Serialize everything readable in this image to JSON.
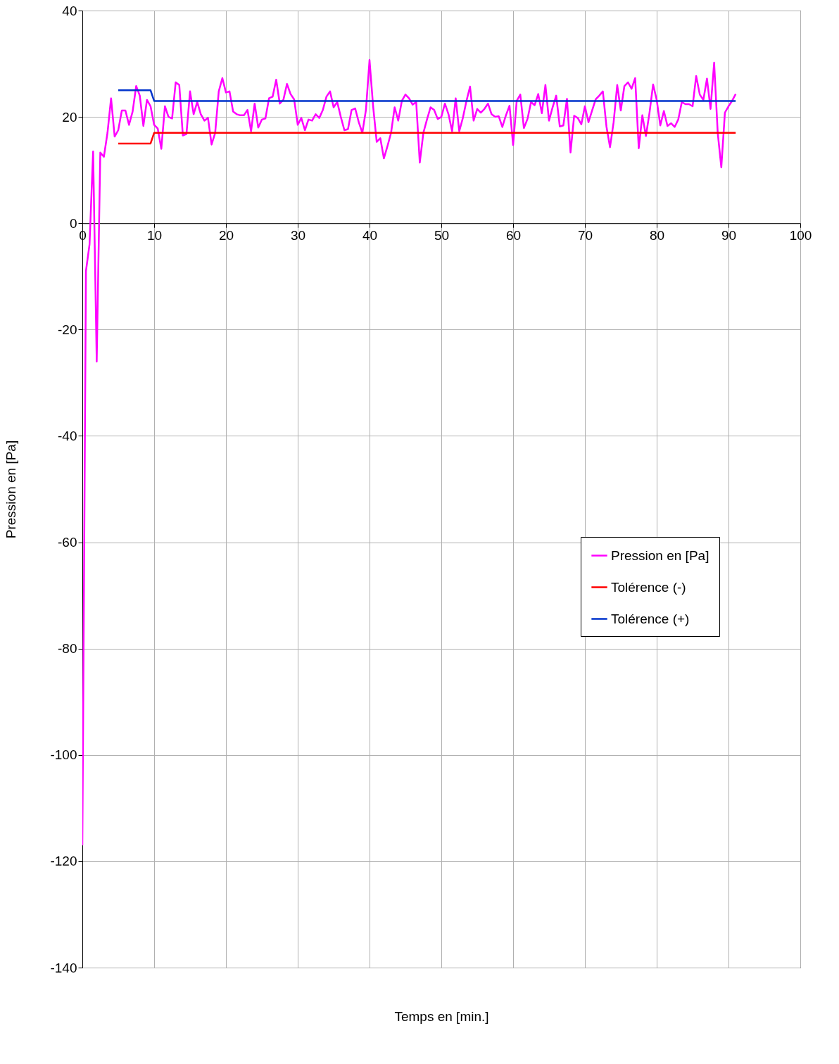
{
  "chart_data": {
    "type": "line",
    "xlabel": "Temps en [min.]",
    "ylabel": "Pression en [Pa]",
    "xlim": [
      0,
      100
    ],
    "xticks": [
      0,
      10,
      20,
      30,
      40,
      50,
      60,
      70,
      80,
      90,
      100
    ],
    "ylim": [
      -140,
      40
    ],
    "yticks": [
      -140,
      -120,
      -100,
      -80,
      -60,
      -40,
      -20,
      0,
      20,
      40
    ],
    "grid": true,
    "legend": "right",
    "marker": "none",
    "line_style": "solid",
    "series": [
      {
        "name": "Pression en [Pa]",
        "color": "#ff00ff",
        "x": [
          0,
          0.5,
          1,
          1.5,
          2,
          2.5,
          3,
          3.5,
          4,
          4.5,
          5,
          5.5,
          6,
          6.5,
          7,
          7.5,
          8,
          8.5,
          9,
          9.5,
          10,
          10.5,
          11,
          11.5,
          12,
          12.5,
          13,
          13.5,
          14,
          14.5,
          15,
          15.5,
          16,
          16.5,
          17,
          17.5,
          18,
          18.5,
          19,
          19.5,
          20,
          20.5,
          21,
          21.5,
          22,
          22.5,
          23,
          23.5,
          24,
          24.5,
          25,
          25.5,
          26,
          26.5,
          27,
          27.5,
          28,
          28.5,
          29,
          29.5,
          30,
          30.5,
          31,
          31.5,
          32,
          32.5,
          33,
          33.5,
          34,
          34.5,
          35,
          35.5,
          36,
          36.5,
          37,
          37.5,
          38,
          38.5,
          39,
          39.5,
          40,
          40.5,
          41,
          41.5,
          42,
          42.5,
          43,
          43.5,
          44,
          44.5,
          45,
          45.5,
          46,
          46.5,
          47,
          47.5,
          48,
          48.5,
          49,
          49.5,
          50,
          50.5,
          51,
          51.5,
          52,
          52.5,
          53,
          53.5,
          54,
          54.5,
          55,
          55.5,
          56,
          56.5,
          57,
          57.5,
          58,
          58.5,
          59,
          59.5,
          60,
          60.5,
          61,
          61.5,
          62,
          62.5,
          63,
          63.5,
          64,
          64.5,
          65,
          65.5,
          66,
          66.5,
          67,
          67.5,
          68,
          68.5,
          69,
          69.5,
          70,
          70.5,
          71,
          71.5,
          72,
          72.5,
          73,
          73.5,
          74,
          74.5,
          75,
          75.5,
          76,
          76.5,
          77,
          77.5,
          78,
          78.5,
          79,
          79.5,
          80,
          80.5,
          81,
          81.5,
          82,
          82.5,
          83,
          83.5,
          84,
          84.5,
          85,
          85.5,
          86,
          86.5,
          87,
          87.5,
          88,
          88.5,
          89,
          89.5,
          90,
          90.5,
          91
        ],
        "values": [
          -117,
          -9,
          -4,
          13.5,
          -26,
          13.3,
          12.5,
          17,
          23.5,
          16.3,
          17.5,
          21.2,
          21.2,
          18.5,
          21,
          25.8,
          24,
          18.3,
          23.2,
          22,
          18.5,
          17.8,
          14,
          22,
          20,
          19.7,
          26.5,
          26,
          16.5,
          16.8,
          24.8,
          20.5,
          22.8,
          20.5,
          19.3,
          19.8,
          14.8,
          17,
          24.8,
          27.3,
          24.6,
          24.8,
          21,
          20.5,
          20.3,
          20.3,
          21.3,
          17.3,
          22.5,
          18,
          19.5,
          19.7,
          23.5,
          23.8,
          27,
          22.5,
          23.2,
          26.2,
          24.3,
          23.3,
          18.5,
          19.8,
          17.5,
          19.5,
          19.3,
          20.5,
          19.8,
          21.3,
          23.8,
          24.8,
          21.8,
          22.8,
          20,
          17.5,
          17.7,
          21.3,
          21.6,
          19,
          17,
          21.3,
          30.7,
          22,
          15.3,
          16,
          12.2,
          14.5,
          17,
          21.8,
          19.3,
          23,
          24.2,
          23.5,
          22.3,
          22.8,
          11.4,
          17,
          19.5,
          21.8,
          21.3,
          19.6,
          20,
          22.5,
          20.5,
          17.3,
          23.5,
          17.3,
          19.8,
          23,
          25.7,
          19.3,
          21.5,
          20.8,
          21.5,
          22.5,
          20.5,
          20,
          20.1,
          18.1,
          20.3,
          22.1,
          14.7,
          23,
          24.2,
          17.9,
          19.6,
          22.8,
          22.2,
          24.3,
          20.7,
          26,
          19.3,
          21.8,
          24,
          18.2,
          18.4,
          23.4,
          13.3,
          20.2,
          19.8,
          18.6,
          22,
          19,
          21.2,
          23.3,
          24,
          24.8,
          18.2,
          14.3,
          19,
          26,
          21.2,
          25.8,
          26.5,
          25.3,
          27.3,
          14.1,
          20.3,
          16.4,
          20.8,
          26.1,
          23.2,
          18.4,
          21.1,
          18.3,
          18.8,
          18.1,
          19.5,
          22.8,
          22.4,
          22.4,
          22,
          27.7,
          24.2,
          23.2,
          27.2,
          21.5,
          30.2,
          17,
          10.5,
          20.8,
          22,
          23,
          24.3
        ]
      },
      {
        "name": "Tolérence (-)",
        "color": "#ff0000",
        "x": [
          5,
          9.5,
          10,
          91
        ],
        "values": [
          15,
          15,
          17,
          17
        ]
      },
      {
        "name": "Tolérence (+)",
        "color": "#0033cc",
        "x": [
          5,
          9.5,
          10,
          91
        ],
        "values": [
          25,
          25,
          23,
          23
        ]
      }
    ]
  }
}
